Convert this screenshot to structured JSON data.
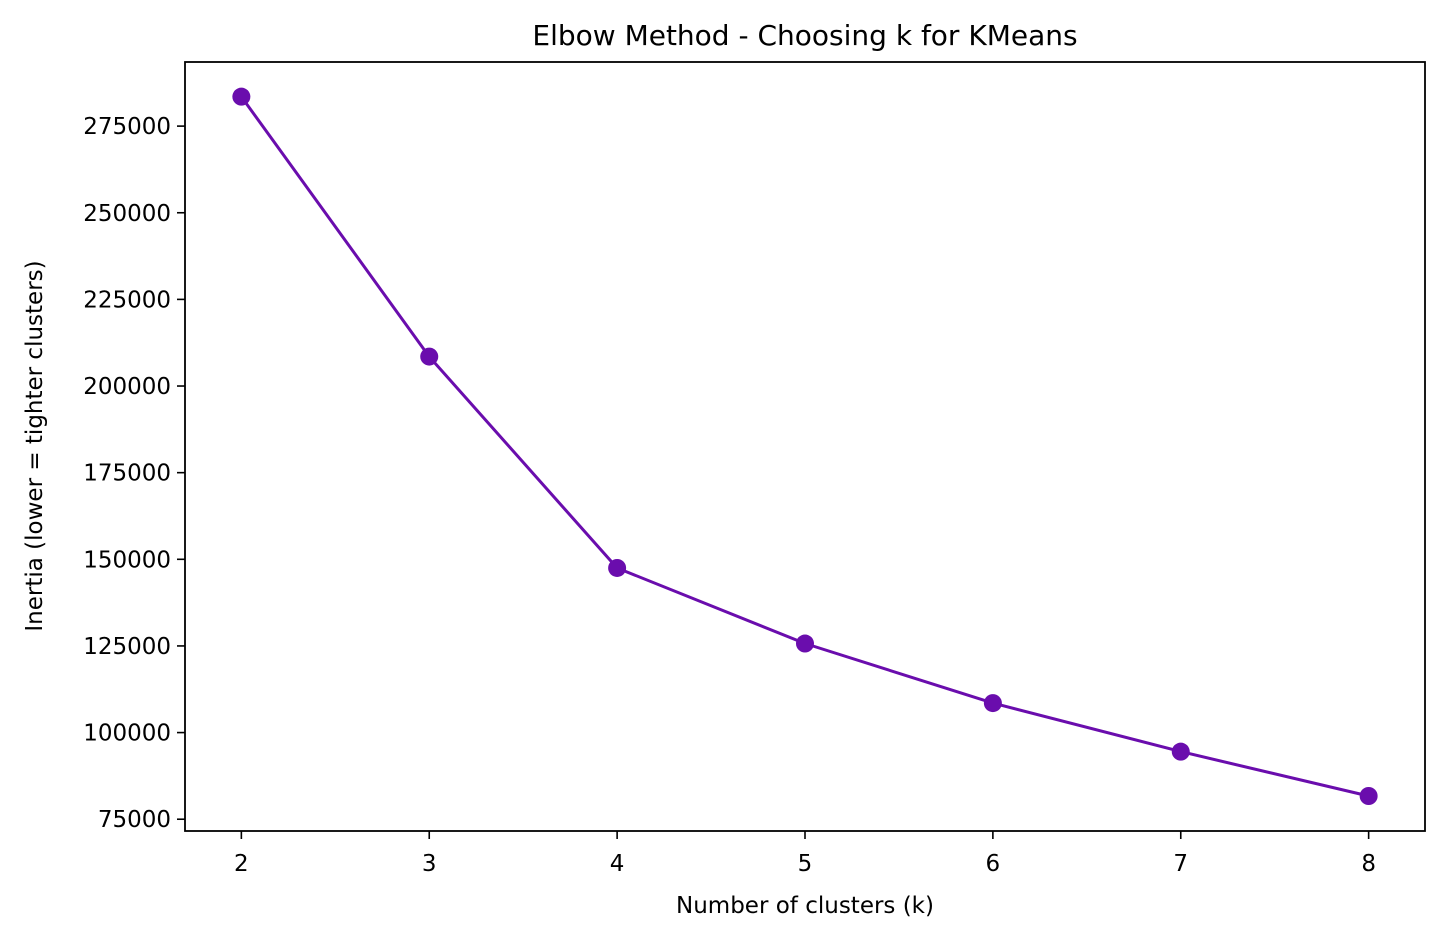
{
  "chart_data": {
    "type": "line",
    "title": "Elbow Method - Choosing k for KMeans",
    "xlabel": "Number of clusters (k)",
    "ylabel": "Inertia (lower = tighter clusters)",
    "x": [
      2,
      3,
      4,
      5,
      6,
      7,
      8
    ],
    "series": [
      {
        "values": [
          283500,
          208500,
          147500,
          125700,
          108500,
          94500,
          81700
        ],
        "color": "#6a0dad",
        "marker": "circle"
      }
    ],
    "xticks": [
      "2",
      "3",
      "4",
      "5",
      "6",
      "7",
      "8"
    ],
    "yticks": [
      "75000",
      "100000",
      "125000",
      "150000",
      "175000",
      "200000",
      "225000",
      "250000",
      "275000"
    ],
    "xlim": [
      1.7,
      8.3
    ],
    "ylim": [
      71600,
      293500
    ],
    "grid": false,
    "legend": "none"
  }
}
